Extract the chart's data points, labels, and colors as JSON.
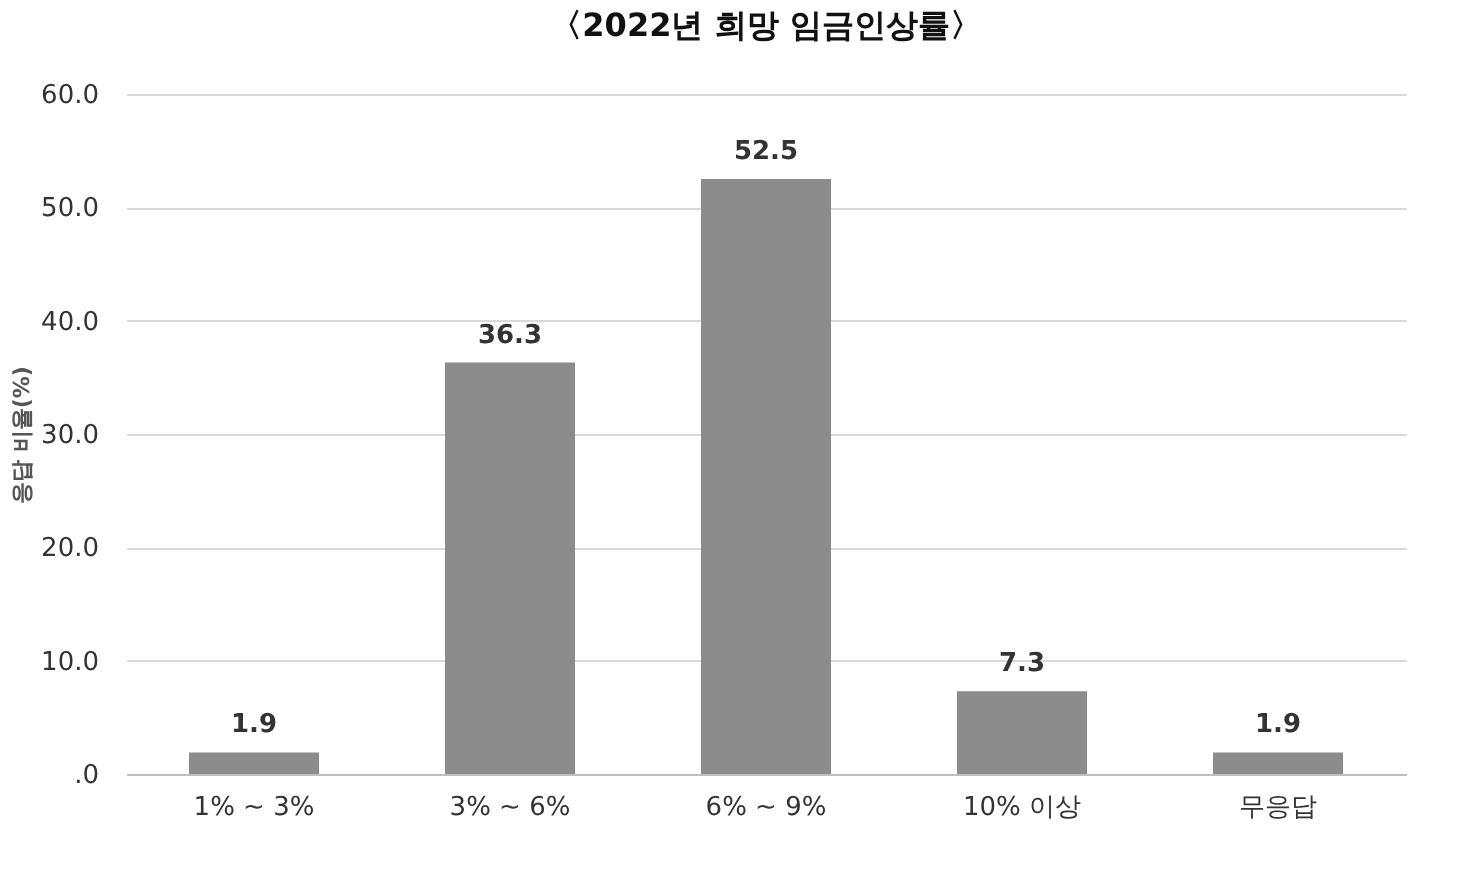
{
  "chart_data": {
    "type": "bar",
    "title": "〈2022년 희망 임금인상률〉",
    "ylabel": "응답 비율(%)",
    "categories": [
      "1% ~ 3%",
      "3% ~ 6%",
      "6% ~ 9%",
      "10% 이상",
      "무응답"
    ],
    "values": [
      1.9,
      36.3,
      52.5,
      7.3,
      1.9
    ],
    "color": "#8c8c8c",
    "ylim": [
      0,
      60
    ],
    "yticks": [
      {
        "value": 0,
        "label": ".0"
      },
      {
        "value": 10,
        "label": "10.0"
      },
      {
        "value": 20,
        "label": "20.0"
      },
      {
        "value": 30,
        "label": "30.0"
      },
      {
        "value": 40,
        "label": "40.0"
      },
      {
        "value": 50,
        "label": "50.0"
      },
      {
        "value": 60,
        "label": "60.0"
      }
    ],
    "grid": "y",
    "data_labels": true
  }
}
